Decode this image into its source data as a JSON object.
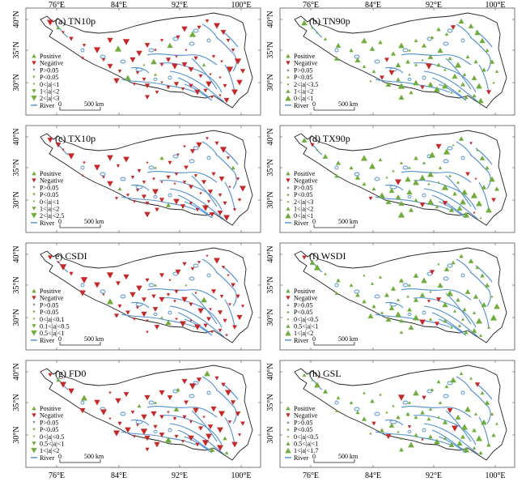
{
  "figure": {
    "x_ticks": [
      "76°E",
      "84°E",
      "92°E",
      "100°E"
    ],
    "y_ticks": [
      "40°N",
      "35°N",
      "30°N"
    ],
    "colors": {
      "positive": "#6fad3a",
      "negative": "#c62828",
      "river": "#4f8fd0",
      "outline": "#222222",
      "frame": "#555555"
    },
    "scale_bar": {
      "zero": "0",
      "distance": "500 km"
    }
  },
  "panels": [
    {
      "id": "a",
      "title": "(a) TN10p",
      "legend": [
        "Positive",
        "Negative",
        "P>0.05",
        "P<0.05",
        "0<|a|<1",
        "1<|a|<2",
        "2<|a|<3",
        "River"
      ],
      "main_sign": "negative"
    },
    {
      "id": "b",
      "title": "(b) TN90p",
      "legend": [
        "Positive",
        "Negative",
        "P>0.05",
        "P<0.05",
        "2<|a|<3.5",
        "1<|a|<2",
        "0<|a|<1",
        "River"
      ],
      "main_sign": "positive"
    },
    {
      "id": "c",
      "title": "(c) TX10p",
      "legend": [
        "Positive",
        "Negative",
        "P>0.05",
        "P<0.05",
        "0<|a|<1",
        "1<|a|<2",
        "2<|a|<2.5",
        "River"
      ],
      "main_sign": "negative"
    },
    {
      "id": "d",
      "title": "(d) TX90p",
      "legend": [
        "Positive",
        "Negative",
        "P>0.05",
        "P<0.05",
        "2<|a|<3",
        "1<|a|<2",
        "0<|a|<1",
        "River"
      ],
      "main_sign": "positive"
    },
    {
      "id": "e",
      "title": "e) CSDI",
      "legend": [
        "Positive",
        "Negative",
        "P>0.05",
        "P<0.05",
        "0<|a|<0.1",
        "0.1<|a|<0.5",
        "0.5<|a|<1",
        "River"
      ],
      "main_sign": "negative"
    },
    {
      "id": "f",
      "title": "(f) WSDI",
      "legend": [
        "Positive",
        "Negative",
        "P>0.05",
        "P<0.05",
        "0<|a|<0.5",
        "0.5<|a|<1",
        "1<|a|<2",
        "River"
      ],
      "main_sign": "positive"
    },
    {
      "id": "g",
      "title": "(g) FD0",
      "legend": [
        "Positive",
        "Negative",
        "P>0.05",
        "P<0.05",
        "0<|a|<0.5",
        "0.5<|a|<1",
        "1<|a|<2",
        "River"
      ],
      "main_sign": "negative"
    },
    {
      "id": "h",
      "title": "(h) GSL",
      "legend": [
        "Positive",
        "Negative",
        "P>0.05",
        "P<0.05",
        "0<|a|<0.5",
        "0.5<|a|<1",
        "1<|a|<1.7",
        "River"
      ],
      "main_sign": "positive"
    }
  ]
}
